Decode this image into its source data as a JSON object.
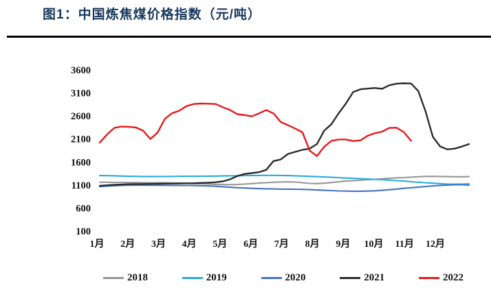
{
  "figure": {
    "title": "图1：中国炼焦煤价格指数（元/吨）",
    "title_color": "#17375E"
  },
  "chart_data": {
    "type": "line",
    "title": "中国炼焦煤价格指数",
    "unit": "元/吨",
    "grid": false,
    "legend_position": "bottom",
    "x_axis": {
      "tick_labels": [
        "1月",
        "2月",
        "3月",
        "4月",
        "5月",
        "6月",
        "7月",
        "8月",
        "9月",
        "10月",
        "11月",
        "12月"
      ]
    },
    "y_axis": {
      "ticks": [
        3600,
        3100,
        2600,
        2100,
        1600,
        1100,
        600,
        100
      ],
      "min": 100,
      "max": 3600
    },
    "points_per_year": 52,
    "series": [
      {
        "name": "2018",
        "color": "#969696",
        "values": [
          1160,
          1160,
          1158,
          1156,
          1155,
          1154,
          1152,
          1150,
          1150,
          1148,
          1145,
          1140,
          1135,
          1130,
          1126,
          1120,
          1115,
          1110,
          1108,
          1112,
          1120,
          1130,
          1142,
          1152,
          1160,
          1166,
          1170,
          1165,
          1150,
          1135,
          1130,
          1140,
          1155,
          1170,
          1185,
          1195,
          1205,
          1215,
          1225,
          1235,
          1245,
          1255,
          1262,
          1270,
          1280,
          1287,
          1288,
          1285,
          1282,
          1280,
          1280,
          1283
        ]
      },
      {
        "name": "2019",
        "color": "#29ABE2",
        "values": [
          1305,
          1303,
          1300,
          1295,
          1290,
          1288,
          1286,
          1285,
          1285,
          1285,
          1287,
          1288,
          1290,
          1290,
          1292,
          1293,
          1295,
          1297,
          1300,
          1302,
          1305,
          1307,
          1308,
          1310,
          1310,
          1308,
          1305,
          1300,
          1295,
          1288,
          1282,
          1275,
          1268,
          1260,
          1252,
          1245,
          1238,
          1230,
          1222,
          1215,
          1205,
          1195,
          1185,
          1172,
          1160,
          1150,
          1140,
          1130,
          1122,
          1118,
          1120,
          1128
        ]
      },
      {
        "name": "2020",
        "color": "#4472C4",
        "values": [
          1065,
          1075,
          1085,
          1092,
          1095,
          1096,
          1096,
          1095,
          1095,
          1093,
          1092,
          1090,
          1090,
          1088,
          1085,
          1080,
          1072,
          1062,
          1052,
          1042,
          1035,
          1028,
          1022,
          1018,
          1015,
          1012,
          1010,
          1008,
          1005,
          1000,
          992,
          985,
          978,
          972,
          968,
          965,
          965,
          968,
          975,
          985,
          998,
          1012,
          1028,
          1042,
          1055,
          1068,
          1080,
          1092,
          1100,
          1105,
          1105,
          1100
        ]
      },
      {
        "name": "2021",
        "color": "#2B2B2B",
        "values": [
          1085,
          1095,
          1105,
          1112,
          1118,
          1120,
          1122,
          1125,
          1128,
          1130,
          1132,
          1135,
          1138,
          1140,
          1145,
          1152,
          1160,
          1180,
          1225,
          1295,
          1340,
          1358,
          1380,
          1430,
          1620,
          1655,
          1775,
          1820,
          1865,
          1890,
          1990,
          2280,
          2420,
          2660,
          2870,
          3120,
          3180,
          3195,
          3208,
          3190,
          3268,
          3300,
          3310,
          3305,
          3140,
          2700,
          2150,
          1940,
          1875,
          1890,
          1935,
          1990
        ]
      },
      {
        "name": "2022",
        "color": "#E8191C",
        "values": [
          2020,
          2195,
          2340,
          2370,
          2365,
          2350,
          2280,
          2100,
          2240,
          2540,
          2660,
          2715,
          2815,
          2860,
          2870,
          2865,
          2860,
          2790,
          2730,
          2640,
          2620,
          2592,
          2655,
          2730,
          2655,
          2470,
          2400,
          2325,
          2245,
          1845,
          1730,
          1930,
          2060,
          2090,
          2090,
          2055,
          2070,
          2170,
          2225,
          2260,
          2340,
          2345,
          2250,
          2060
        ]
      }
    ]
  }
}
